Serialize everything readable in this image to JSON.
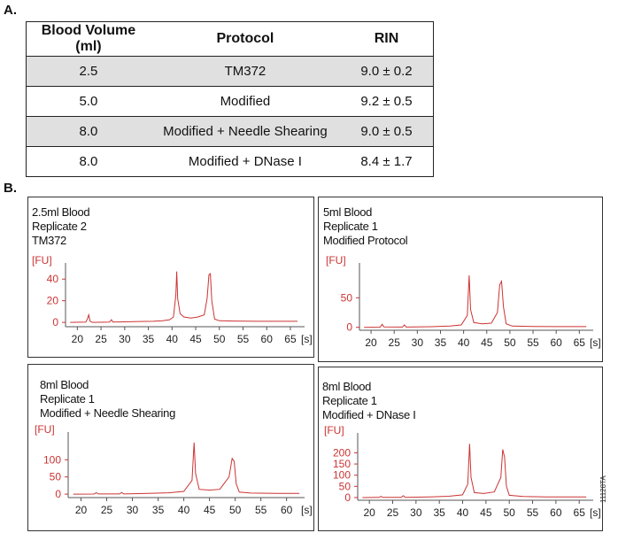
{
  "sections": {
    "a": "A.",
    "b": "B."
  },
  "table": {
    "headers": [
      "Blood Volume (ml)",
      "Protocol",
      "RIN"
    ],
    "rows": [
      [
        "2.5",
        "TM372",
        "9.0 ± 0.2"
      ],
      [
        "5.0",
        "Modified",
        "9.2 ± 0.5"
      ],
      [
        "8.0",
        "Modified + Needle Shearing",
        "9.0 ± 0.5"
      ],
      [
        "8.0",
        "Modified + DNase I",
        "8.4 ± 1.7"
      ]
    ]
  },
  "figure_code": "11128TA",
  "chart_data": [
    {
      "type": "line",
      "annotation": [
        "2.5ml Blood",
        "Replicate 2",
        "TM372"
      ],
      "ylabel": "[FU]",
      "xlabel": "[s]",
      "x_ticks": [
        20,
        25,
        30,
        35,
        40,
        45,
        50,
        55,
        60,
        65
      ],
      "y_ticks": [
        0,
        20,
        40
      ],
      "xlim": [
        17.5,
        68
      ],
      "ylim": [
        -4,
        50
      ],
      "color": "#cc3333",
      "points": [
        [
          18.5,
          0
        ],
        [
          21.8,
          0.3
        ],
        [
          22.2,
          4
        ],
        [
          22.4,
          7
        ],
        [
          22.7,
          1
        ],
        [
          23.2,
          0
        ],
        [
          26.8,
          0.3
        ],
        [
          27.2,
          2.5
        ],
        [
          27.5,
          0.3
        ],
        [
          30,
          0.5
        ],
        [
          33,
          0.8
        ],
        [
          36,
          1
        ],
        [
          38,
          1.5
        ],
        [
          39.5,
          2.5
        ],
        [
          40.3,
          5
        ],
        [
          40.8,
          25
        ],
        [
          41.0,
          47
        ],
        [
          41.2,
          22
        ],
        [
          41.7,
          8
        ],
        [
          42.5,
          5
        ],
        [
          44,
          4
        ],
        [
          45.5,
          5
        ],
        [
          46.8,
          7
        ],
        [
          47.4,
          22
        ],
        [
          47.8,
          44
        ],
        [
          48.1,
          45
        ],
        [
          48.4,
          20
        ],
        [
          49.0,
          3
        ],
        [
          50,
          1.5
        ],
        [
          53,
          1.2
        ],
        [
          58,
          1
        ],
        [
          63,
          1
        ],
        [
          66.5,
          1
        ]
      ]
    },
    {
      "type": "line",
      "annotation": [
        "5ml Blood",
        "Replicate 1",
        "Modified Protocol"
      ],
      "ylabel": "[FU]",
      "xlabel": "[s]",
      "x_ticks": [
        20,
        25,
        30,
        35,
        40,
        45,
        50,
        55,
        60,
        65
      ],
      "y_ticks": [
        0,
        50
      ],
      "xlim": [
        17.5,
        68
      ],
      "ylim": [
        -5,
        100
      ],
      "color": "#cc3333",
      "points": [
        [
          18.5,
          0
        ],
        [
          22,
          0.3
        ],
        [
          22.4,
          5
        ],
        [
          22.8,
          0.5
        ],
        [
          26.8,
          0.4
        ],
        [
          27.2,
          4
        ],
        [
          27.6,
          0.4
        ],
        [
          33,
          1
        ],
        [
          37,
          2
        ],
        [
          39.5,
          4
        ],
        [
          40.8,
          20
        ],
        [
          41.2,
          88
        ],
        [
          41.5,
          30
        ],
        [
          42.2,
          8
        ],
        [
          44,
          6
        ],
        [
          46,
          7
        ],
        [
          47.3,
          25
        ],
        [
          47.8,
          72
        ],
        [
          48.2,
          78
        ],
        [
          48.6,
          35
        ],
        [
          49.2,
          6
        ],
        [
          50.5,
          2
        ],
        [
          55,
          1.5
        ],
        [
          60,
          1.2
        ],
        [
          66.5,
          1.2
        ]
      ]
    },
    {
      "type": "line",
      "annotation": [
        "8ml Blood",
        "Replicate 1",
        "Modified + Needle Shearing"
      ],
      "ylabel": "[FU]",
      "xlabel": "[s]",
      "x_ticks": [
        20,
        25,
        30,
        35,
        40,
        45,
        50,
        55,
        60
      ],
      "y_ticks": [
        0,
        50,
        100
      ],
      "xlim": [
        17.5,
        63.5
      ],
      "ylim": [
        -10,
        165
      ],
      "color": "#cc3333",
      "points": [
        [
          18.5,
          0
        ],
        [
          22.5,
          0.3
        ],
        [
          23,
          4
        ],
        [
          23.4,
          0.5
        ],
        [
          27.5,
          0.5
        ],
        [
          27.9,
          5
        ],
        [
          28.3,
          0.5
        ],
        [
          33,
          2
        ],
        [
          37,
          4
        ],
        [
          40,
          8
        ],
        [
          41.6,
          40
        ],
        [
          42.0,
          150
        ],
        [
          42.3,
          60
        ],
        [
          43,
          14
        ],
        [
          45,
          12
        ],
        [
          47,
          14
        ],
        [
          48.8,
          50
        ],
        [
          49.4,
          104
        ],
        [
          49.8,
          95
        ],
        [
          50.2,
          30
        ],
        [
          50.8,
          6
        ],
        [
          53,
          3
        ],
        [
          58,
          2
        ],
        [
          62.5,
          2
        ]
      ]
    },
    {
      "type": "line",
      "annotation": [
        "8ml Blood",
        "Replicate 1",
        "Modified + DNase I"
      ],
      "ylabel": "[FU]",
      "xlabel": "[s]",
      "x_ticks": [
        20,
        25,
        30,
        35,
        40,
        45,
        50,
        55,
        60,
        65
      ],
      "y_ticks": [
        0,
        50,
        100,
        150,
        200
      ],
      "xlim": [
        17.5,
        68
      ],
      "ylim": [
        -12,
        265
      ],
      "color": "#cc3333",
      "points": [
        [
          18.5,
          0
        ],
        [
          22,
          0.5
        ],
        [
          22.5,
          5
        ],
        [
          22.9,
          0.5
        ],
        [
          26.8,
          0.5
        ],
        [
          27.3,
          8
        ],
        [
          27.7,
          0.5
        ],
        [
          33,
          3
        ],
        [
          37,
          6
        ],
        [
          40,
          12
        ],
        [
          41.1,
          60
        ],
        [
          41.5,
          240
        ],
        [
          41.8,
          90
        ],
        [
          42.5,
          22
        ],
        [
          44.5,
          18
        ],
        [
          46.8,
          25
        ],
        [
          48.2,
          90
        ],
        [
          48.6,
          215
        ],
        [
          49.0,
          180
        ],
        [
          49.4,
          50
        ],
        [
          50,
          10
        ],
        [
          53,
          5
        ],
        [
          58,
          3
        ],
        [
          66.5,
          3
        ]
      ]
    }
  ]
}
